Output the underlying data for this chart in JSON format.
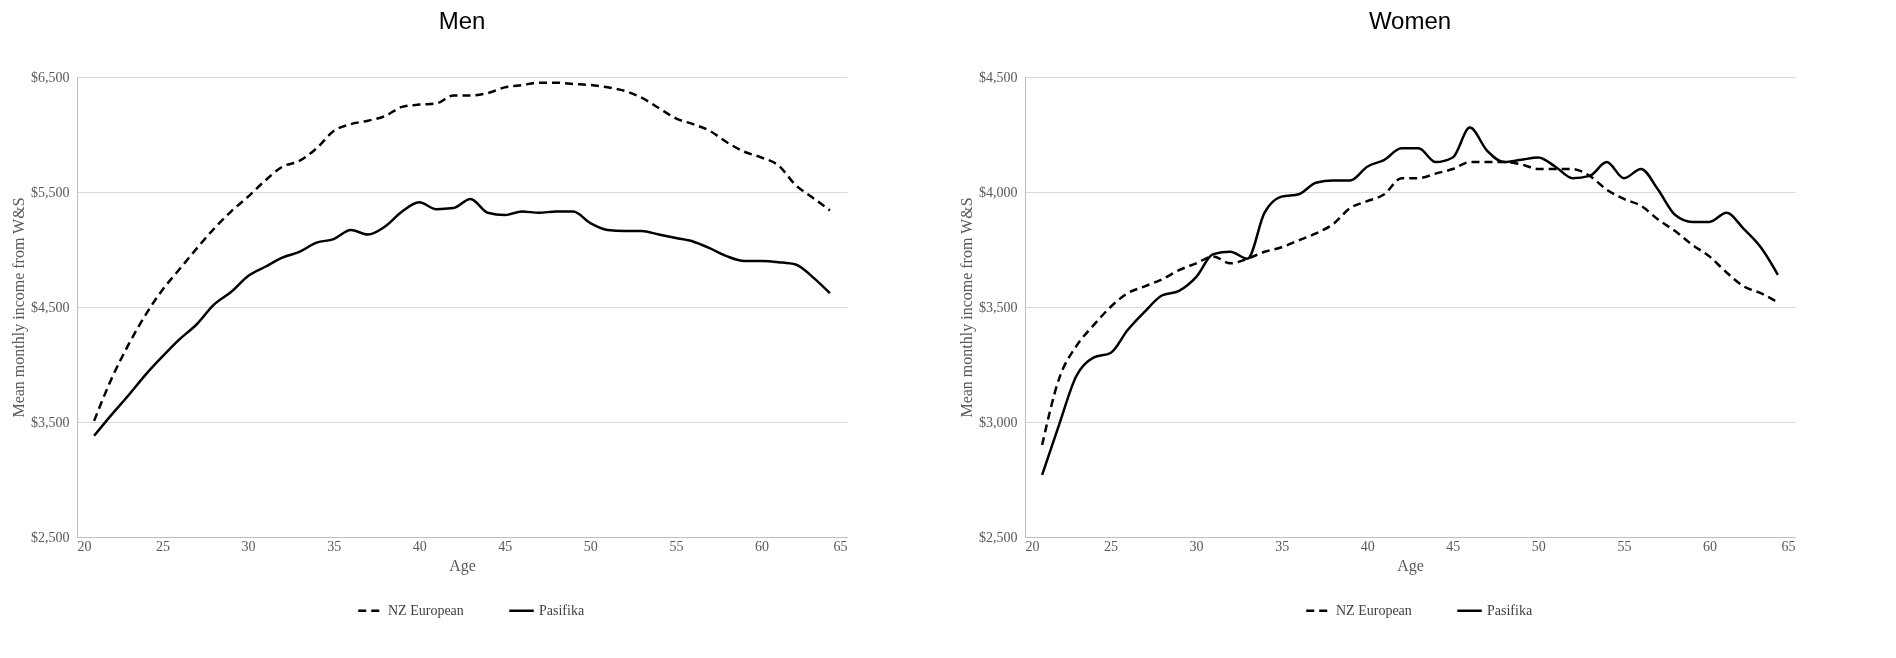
{
  "chart_data": [
    {
      "type": "line",
      "title": "Men",
      "xlabel": "Age",
      "ylabel": "Mean monthly income from W&S",
      "x": [
        21,
        22,
        23,
        24,
        25,
        26,
        27,
        28,
        29,
        30,
        31,
        32,
        33,
        34,
        35,
        36,
        37,
        38,
        39,
        40,
        41,
        42,
        43,
        44,
        45,
        46,
        47,
        48,
        49,
        50,
        51,
        52,
        53,
        54,
        55,
        56,
        57,
        58,
        59,
        60,
        61,
        62,
        63,
        64
      ],
      "series": [
        {
          "name": "NZ European",
          "color": "#000000",
          "line_style": "dashed",
          "values": [
            3510,
            3870,
            4170,
            4430,
            4650,
            4830,
            5010,
            5180,
            5330,
            5460,
            5600,
            5720,
            5770,
            5880,
            6030,
            6090,
            6120,
            6160,
            6240,
            6260,
            6270,
            6340,
            6340,
            6360,
            6410,
            6430,
            6450,
            6450,
            6440,
            6430,
            6410,
            6380,
            6320,
            6230,
            6140,
            6090,
            6030,
            5930,
            5850,
            5800,
            5730,
            5560,
            5450,
            5340
          ]
        },
        {
          "name": "Pasifika",
          "color": "#000000",
          "line_style": "solid",
          "values": [
            3380,
            3560,
            3730,
            3910,
            4070,
            4220,
            4350,
            4520,
            4630,
            4770,
            4850,
            4930,
            4980,
            5060,
            5090,
            5170,
            5130,
            5200,
            5330,
            5410,
            5350,
            5360,
            5440,
            5320,
            5300,
            5330,
            5320,
            5330,
            5330,
            5230,
            5170,
            5160,
            5160,
            5130,
            5100,
            5070,
            5010,
            4940,
            4900,
            4900,
            4890,
            4870,
            4760,
            4620
          ]
        }
      ],
      "xlim": [
        20,
        65
      ],
      "xticks": [
        20,
        25,
        30,
        35,
        40,
        45,
        50,
        55,
        60,
        65
      ],
      "ylim": [
        2500,
        6500
      ],
      "yticks": [
        {
          "value": 2500,
          "label": "$2,500"
        },
        {
          "value": 3500,
          "label": "$3,500"
        },
        {
          "value": 4500,
          "label": "$4,500"
        },
        {
          "value": 5500,
          "label": "$5,500"
        },
        {
          "value": 6500,
          "label": "$6,500"
        }
      ],
      "grid": "y",
      "legend": "bottom"
    },
    {
      "type": "line",
      "title": "Women",
      "xlabel": "Age",
      "ylabel": "Mean monthly income from W&S",
      "x": [
        21,
        22,
        23,
        24,
        25,
        26,
        27,
        28,
        29,
        30,
        31,
        32,
        33,
        34,
        35,
        36,
        37,
        38,
        39,
        40,
        41,
        42,
        43,
        44,
        45,
        46,
        47,
        48,
        49,
        50,
        51,
        52,
        53,
        54,
        55,
        56,
        57,
        58,
        59,
        60,
        61,
        62,
        63,
        64
      ],
      "series": [
        {
          "name": "NZ European",
          "color": "#000000",
          "line_style": "dashed",
          "values": [
            2900,
            3190,
            3330,
            3420,
            3500,
            3560,
            3590,
            3620,
            3660,
            3690,
            3720,
            3690,
            3710,
            3740,
            3760,
            3790,
            3820,
            3860,
            3930,
            3960,
            3990,
            4060,
            4060,
            4080,
            4100,
            4130,
            4130,
            4130,
            4120,
            4100,
            4100,
            4100,
            4070,
            4010,
            3970,
            3940,
            3880,
            3830,
            3770,
            3720,
            3650,
            3590,
            3560,
            3520
          ]
        },
        {
          "name": "Pasifika",
          "color": "#000000",
          "line_style": "solid",
          "values": [
            2770,
            2990,
            3200,
            3280,
            3300,
            3400,
            3480,
            3550,
            3570,
            3630,
            3730,
            3740,
            3710,
            3910,
            3980,
            3990,
            4040,
            4050,
            4050,
            4110,
            4140,
            4190,
            4190,
            4130,
            4150,
            4280,
            4180,
            4130,
            4140,
            4150,
            4110,
            4060,
            4070,
            4130,
            4060,
            4100,
            4010,
            3900,
            3870,
            3870,
            3910,
            3840,
            3760,
            3640
          ]
        }
      ],
      "xlim": [
        20,
        65
      ],
      "xticks": [
        20,
        25,
        30,
        35,
        40,
        45,
        50,
        55,
        60,
        65
      ],
      "ylim": [
        2500,
        4500
      ],
      "yticks": [
        {
          "value": 2500,
          "label": "$2,500"
        },
        {
          "value": 3000,
          "label": "$3,000"
        },
        {
          "value": 3500,
          "label": "$3,500"
        },
        {
          "value": 4000,
          "label": "$4,000"
        },
        {
          "value": 4500,
          "label": "$4,500"
        }
      ],
      "grid": "y",
      "legend": "bottom"
    }
  ]
}
